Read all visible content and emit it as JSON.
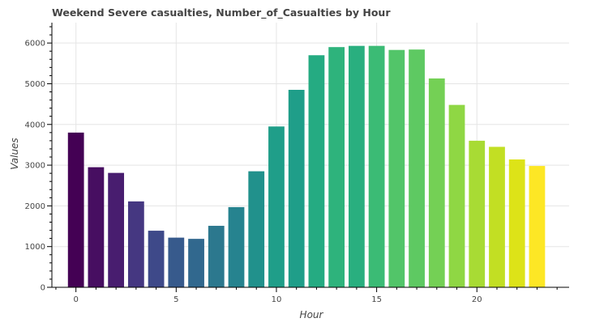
{
  "chart_data": {
    "type": "bar",
    "title": "Weekend Severe casualties, Number_of_Casualties by Hour",
    "xlabel": "Hour",
    "ylabel": "Values",
    "categories": [
      0,
      1,
      2,
      3,
      4,
      5,
      6,
      7,
      8,
      9,
      10,
      11,
      12,
      13,
      14,
      15,
      16,
      17,
      18,
      19,
      20,
      21,
      22,
      23
    ],
    "values": [
      3800,
      2950,
      2810,
      2110,
      1390,
      1220,
      1190,
      1510,
      1970,
      2850,
      3950,
      4850,
      5700,
      5900,
      5930,
      5930,
      5830,
      5840,
      5130,
      4480,
      3600,
      3450,
      3140,
      2980
    ],
    "xlim": [
      -1.2,
      24.6
    ],
    "ylim": [
      0,
      6500
    ],
    "x_ticks": [
      0,
      5,
      10,
      15,
      20
    ],
    "y_ticks": [
      0,
      1000,
      2000,
      3000,
      4000,
      5000,
      6000
    ],
    "grid": true,
    "colors": [
      "#440154",
      "#470e61",
      "#481d6f",
      "#453781",
      "#3e4989",
      "#375a8c",
      "#31688e",
      "#2c788e",
      "#26838f",
      "#21918c",
      "#1f9e89",
      "#1f9e89",
      "#25ab82",
      "#2eb37c",
      "#29af7f",
      "#3bbb75",
      "#52c569",
      "#5ec962",
      "#74d055",
      "#8fd744",
      "#a8db34",
      "#c2df23",
      "#dde318",
      "#fde725"
    ]
  }
}
